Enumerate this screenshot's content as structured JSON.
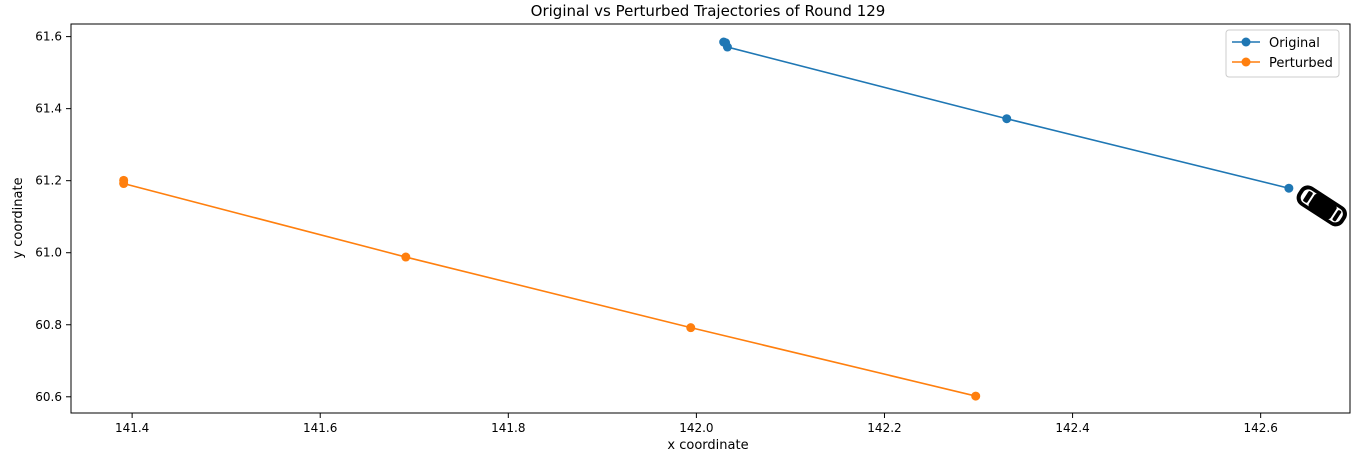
{
  "chart_data": {
    "type": "line",
    "title": "Original vs Perturbed Trajectories of Round 129",
    "xlabel": "x coordinate",
    "ylabel": "y coordinate",
    "xlim": [
      141.335,
      142.695
    ],
    "ylim": [
      60.555,
      61.635
    ],
    "xticks": [
      141.4,
      141.6,
      141.8,
      142.0,
      142.2,
      142.4,
      142.6
    ],
    "xtick_labels": [
      "141.4",
      "141.6",
      "141.8",
      "142.0",
      "142.2",
      "142.4",
      "142.6"
    ],
    "yticks": [
      60.6,
      60.8,
      61.0,
      61.2,
      61.4,
      61.6
    ],
    "ytick_labels": [
      "60.6",
      "60.8",
      "61.0",
      "61.2",
      "61.4",
      "61.6"
    ],
    "grid": false,
    "legend_position": "top-right",
    "series": [
      {
        "name": "Original",
        "color": "#1f77b4",
        "marker": "circle",
        "points": [
          [
            142.029,
            61.585
          ],
          [
            142.031,
            61.583
          ],
          [
            142.033,
            61.571
          ],
          [
            142.33,
            61.372
          ],
          [
            142.63,
            61.179
          ]
        ]
      },
      {
        "name": "Perturbed",
        "color": "#ff7f0e",
        "marker": "circle",
        "points": [
          [
            141.391,
            61.201
          ],
          [
            141.391,
            61.192
          ],
          [
            141.691,
            60.988
          ],
          [
            141.994,
            60.792
          ],
          [
            142.297,
            60.602
          ]
        ]
      }
    ],
    "annotations": [
      {
        "icon": "car-icon",
        "x": 142.665,
        "y": 61.13,
        "heading_deg": 33
      }
    ]
  }
}
